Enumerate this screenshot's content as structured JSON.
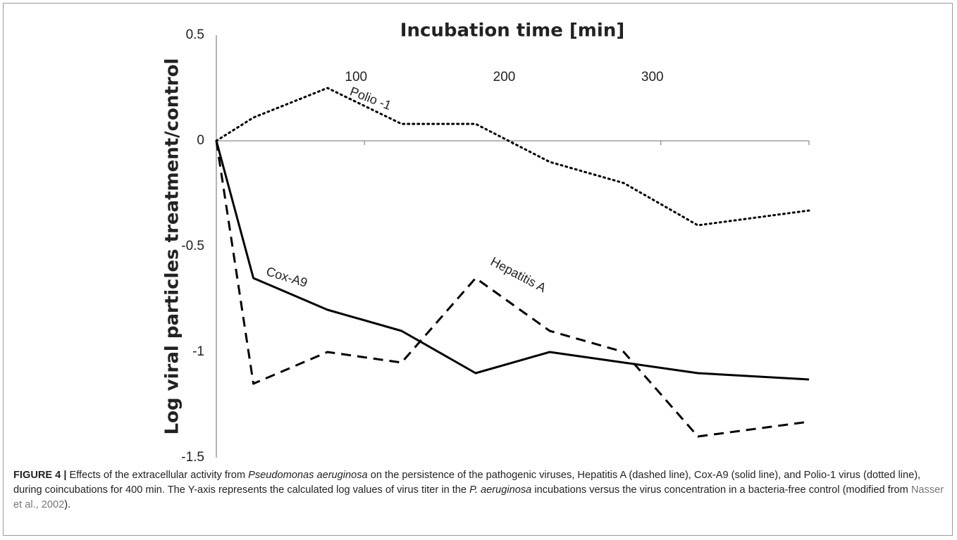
{
  "chart_data": {
    "type": "line",
    "x_label": "Incubation time [min]",
    "y_label": "Log viral particles treatment/control",
    "x": [
      0,
      25,
      75,
      125,
      175,
      225,
      275,
      325,
      400
    ],
    "series": [
      {
        "name": "Polio -1",
        "color": "#000000",
        "dash": "dotted",
        "values": [
          0,
          0.11,
          0.25,
          0.08,
          0.08,
          -0.1,
          -0.2,
          -0.4,
          -0.33
        ]
      },
      {
        "name": "Cox-A9",
        "color": "#000000",
        "dash": "solid",
        "values": [
          0,
          -0.65,
          -0.8,
          -0.9,
          -1.1,
          -1.0,
          -1.05,
          -1.1,
          -1.13
        ]
      },
      {
        "name": "Hepatitis A",
        "color": "#000000",
        "dash": "dashed",
        "values": [
          0,
          -1.15,
          -1.0,
          -1.05,
          -0.65,
          -0.9,
          -1.0,
          -1.4,
          -1.33
        ]
      }
    ],
    "xlim": [
      0,
      400
    ],
    "xticks": [
      100,
      200,
      300
    ],
    "ylim": [
      -1.5,
      0.5
    ],
    "yticks": [
      0.5,
      0,
      -0.5,
      -1,
      -1.5
    ],
    "grid": false
  },
  "caption": {
    "parts": [
      "FIGURE 4 |",
      " Effects of the extracellular activity from ",
      "Pseudomonas aeruginosa",
      " on the persistence of the pathogenic viruses, Hepatitis A (dashed line), Cox-A9 (solid line), and Polio-1 virus (dotted line), during coincubations for 400 min. The Y-axis represents the calculated log values of virus titer in the ",
      "P. aeruginosa",
      " incubations versus the virus concentration in a bacteria-free control (modified from ",
      "Nasser et al., 2002",
      ")."
    ]
  }
}
